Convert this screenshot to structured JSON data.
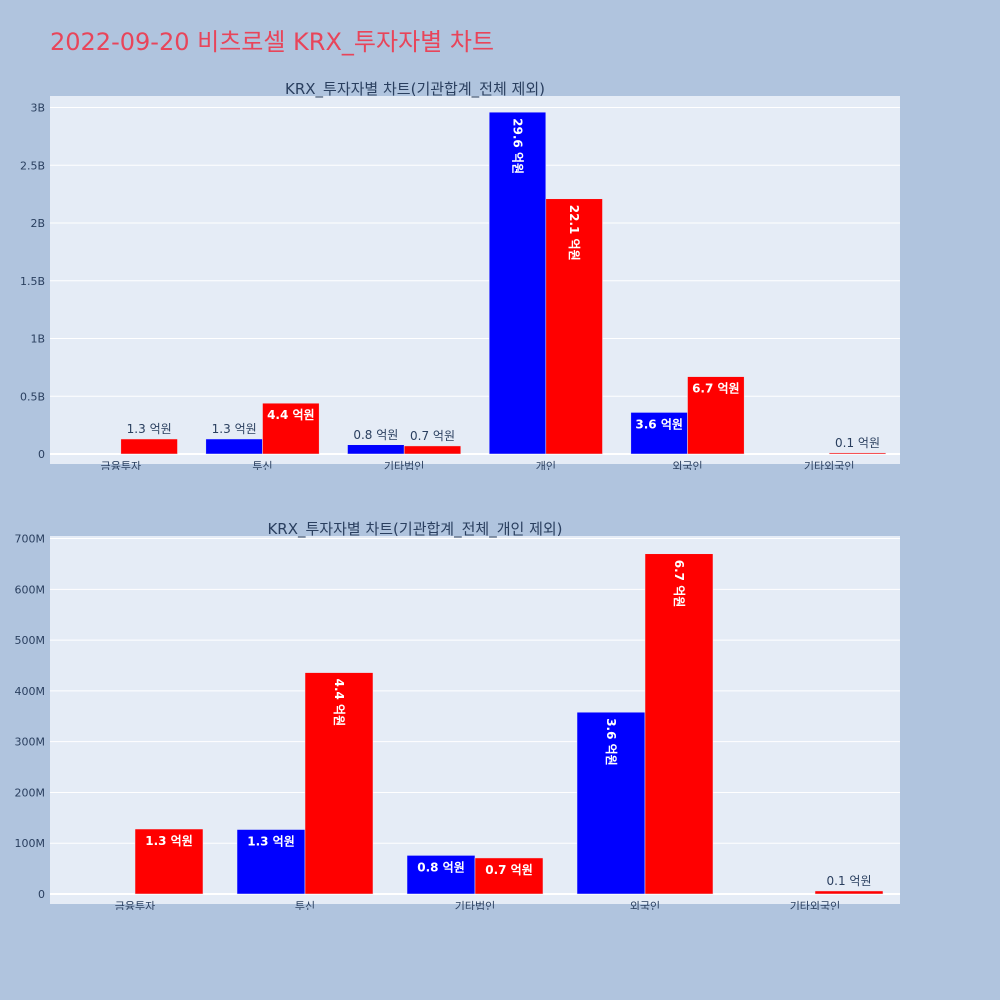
{
  "page": {
    "title": "2022-09-20 비츠로셀 KRX_투자자별 차트",
    "background": "#b0c4de",
    "title_color": "#e8455a"
  },
  "colors": {
    "series1": "#0000ff",
    "series2": "#ff0000",
    "plot_bg": "#e5ecf6",
    "text": "#2a3f5f"
  },
  "chart_data": [
    {
      "type": "bar",
      "title": "KRX_투자자별 차트(기관합계_전체 제외)",
      "categories": [
        "금융투자",
        "투신",
        "기타법인",
        "개인",
        "외국인",
        "기타외국인"
      ],
      "ylim": [
        0,
        3100000000
      ],
      "yticks": [
        0,
        500000000,
        1000000000,
        1500000000,
        2000000000,
        2500000000,
        3000000000
      ],
      "ytick_labels": [
        "0",
        "0.5B",
        "1B",
        "1.5B",
        "2B",
        "2.5B",
        "3B"
      ],
      "series": [
        {
          "color": "#0000ff",
          "values": [
            0,
            130000000,
            80000000,
            2960000000,
            360000000,
            0
          ],
          "labels": [
            "",
            "1.3 억원",
            "0.8 억원",
            "29.6 억원",
            "3.6 억원",
            ""
          ]
        },
        {
          "color": "#ff0000",
          "values": [
            130000000,
            440000000,
            70000000,
            2210000000,
            670000000,
            10000000
          ],
          "labels": [
            "1.3 억원",
            "4.4 억원",
            "0.7 억원",
            "22.1 억원",
            "6.7 억원",
            "0.1 억원"
          ]
        }
      ]
    },
    {
      "type": "bar",
      "title": "KRX_투자자별 차트(기관합계_전체_개인 제외)",
      "categories": [
        "금융투자",
        "투신",
        "기타법인",
        "외국인",
        "기타외국인"
      ],
      "ylim": [
        0,
        705000000
      ],
      "yticks": [
        0,
        100000000,
        200000000,
        300000000,
        400000000,
        500000000,
        600000000,
        700000000
      ],
      "ytick_labels": [
        "0",
        "100M",
        "200M",
        "300M",
        "400M",
        "500M",
        "600M",
        "700M"
      ],
      "series": [
        {
          "color": "#0000ff",
          "values": [
            0,
            127000000,
            76000000,
            358000000,
            0
          ],
          "labels": [
            "",
            "1.3 억원",
            "0.8 억원",
            "3.6 억원",
            ""
          ]
        },
        {
          "color": "#ff0000",
          "values": [
            128000000,
            436000000,
            71000000,
            670000000,
            6000000
          ],
          "labels": [
            "1.3 억원",
            "4.4 억원",
            "0.7 억원",
            "6.7 억원",
            "0.1 억원"
          ]
        }
      ]
    }
  ]
}
